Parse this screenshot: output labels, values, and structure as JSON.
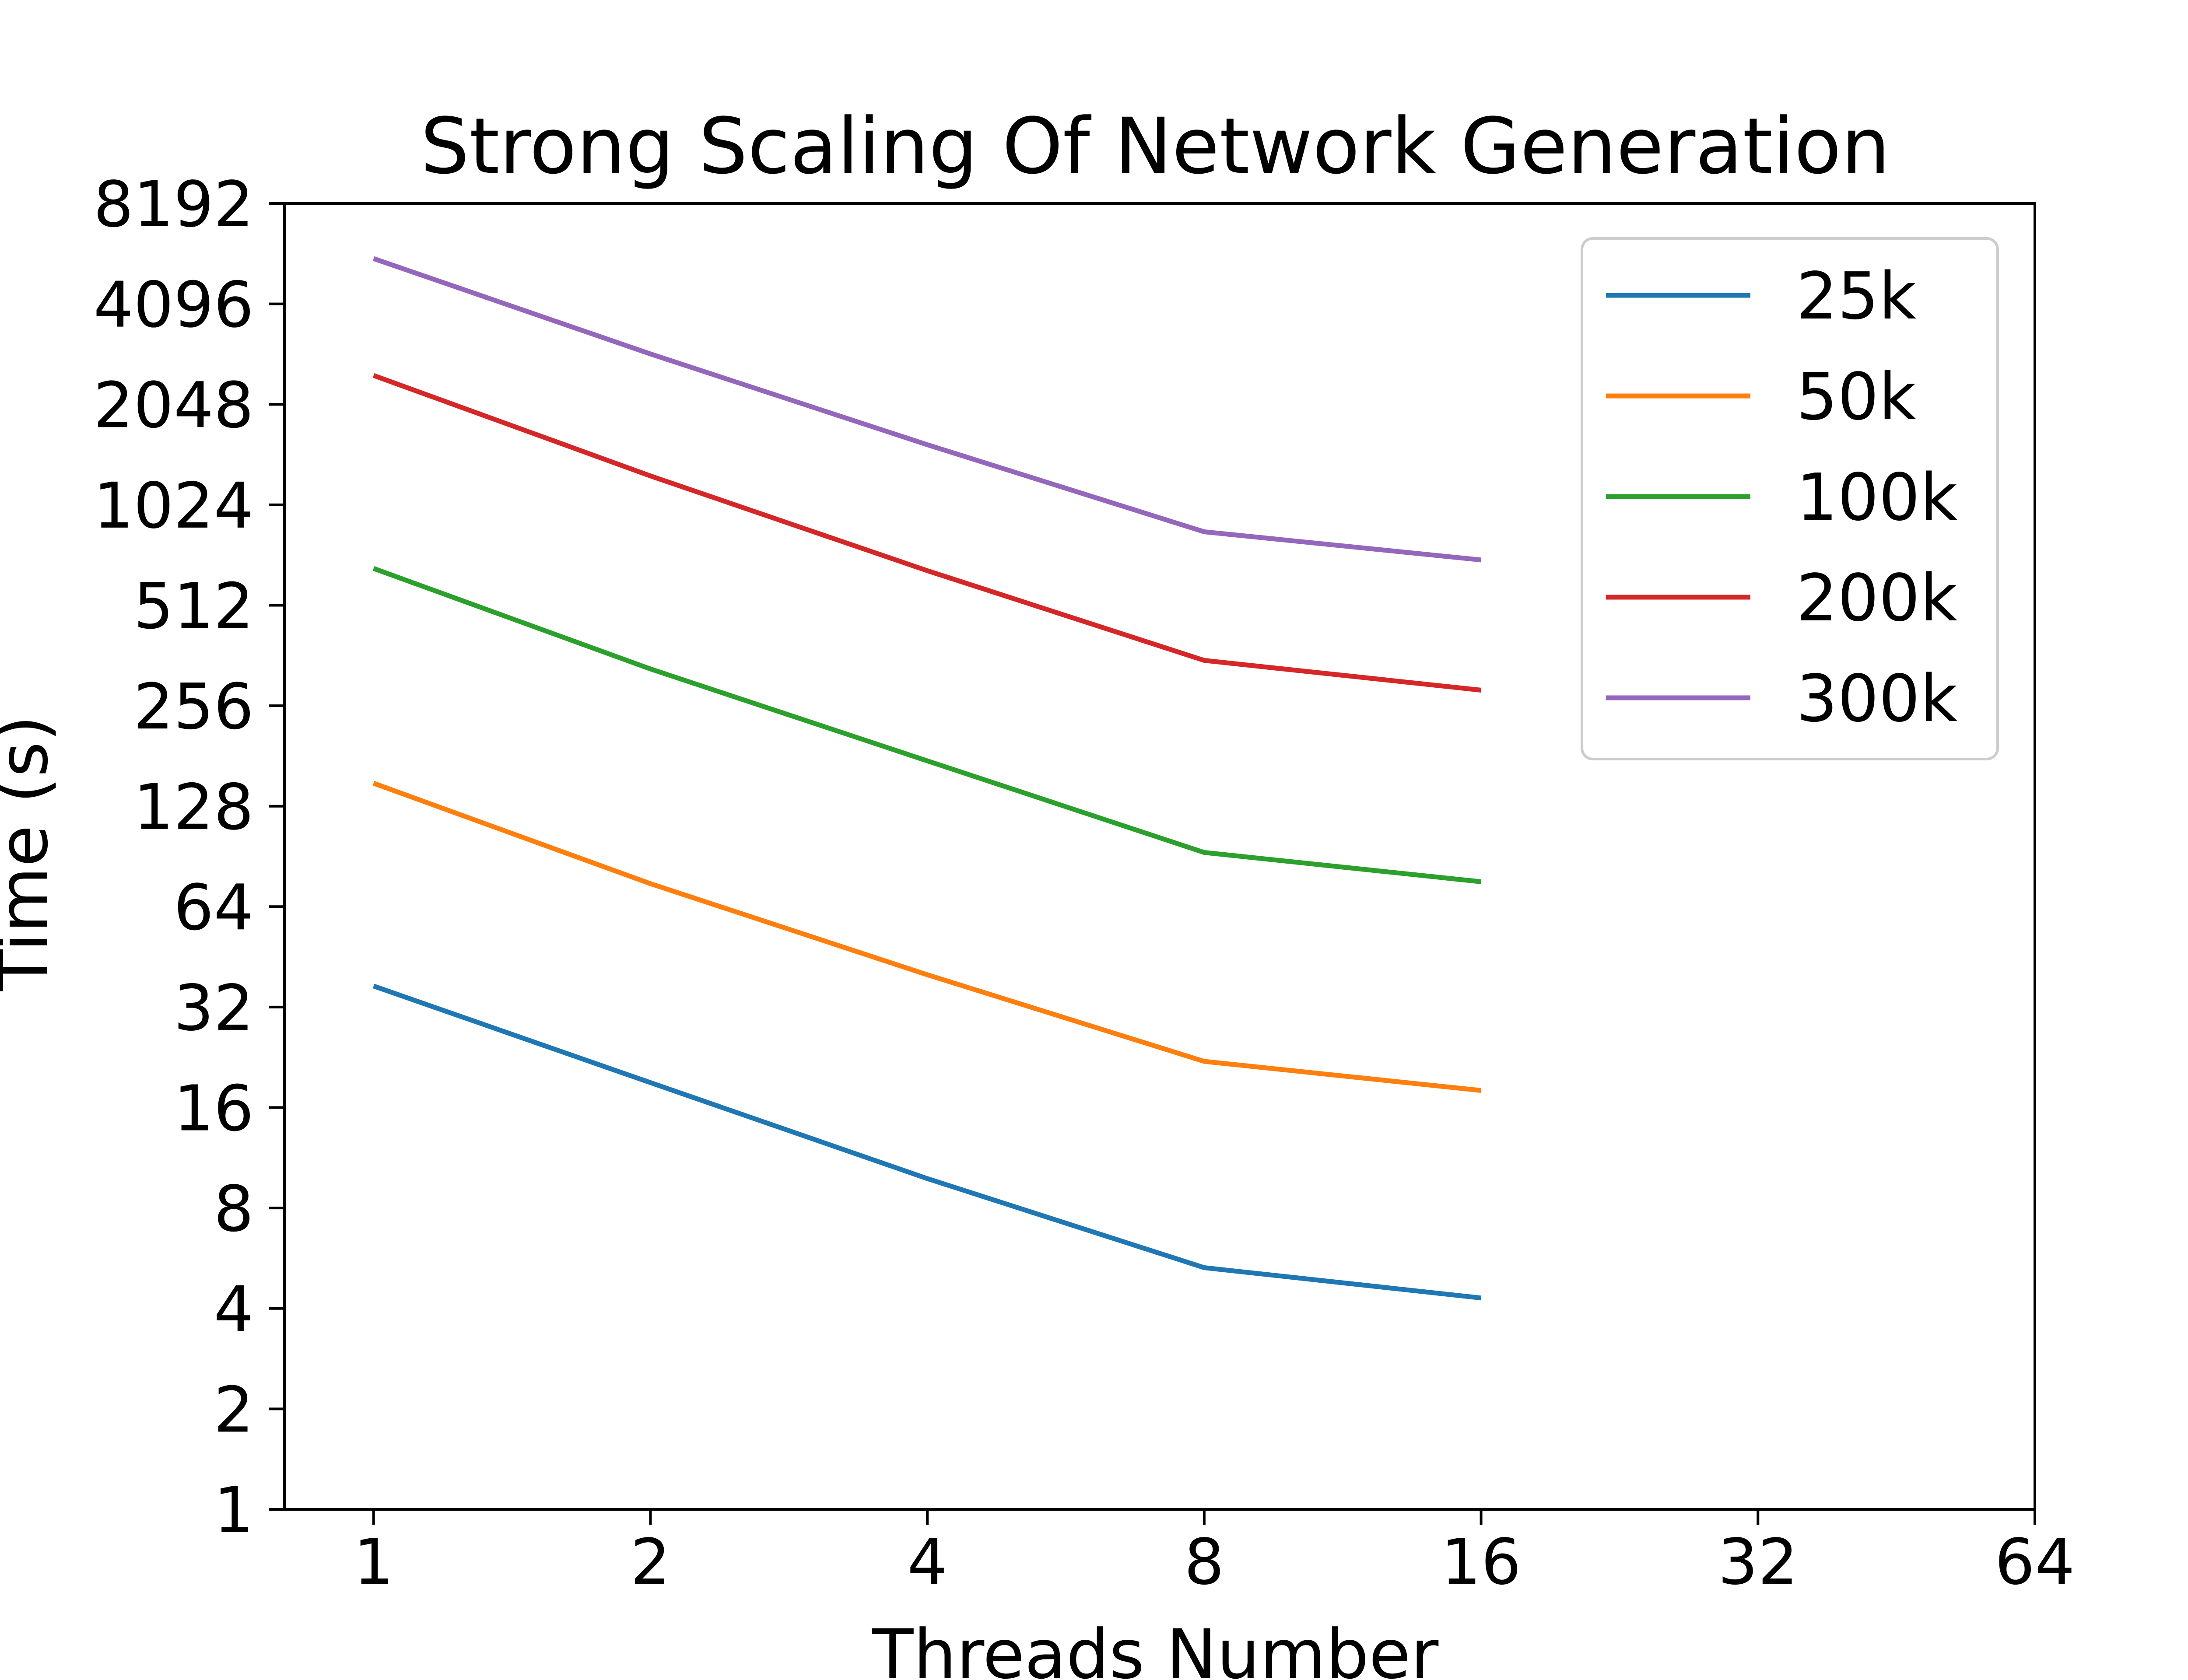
{
  "chart_data": {
    "type": "line",
    "title": "Strong Scaling Of Network Generation",
    "xlabel": "Threads Number",
    "ylabel": "Time (s)",
    "x_scale": "log2",
    "y_scale": "log2",
    "xlim": [
      0.8,
      64
    ],
    "ylim": [
      1,
      8192
    ],
    "x_ticks": [
      "1",
      "2",
      "4",
      "8",
      "16",
      "32",
      "64"
    ],
    "y_ticks": [
      "1",
      "2",
      "4",
      "8",
      "16",
      "32",
      "64",
      "128",
      "256",
      "512",
      "1024",
      "2048",
      "4096",
      "8192"
    ],
    "grid": false,
    "legend_position": "top-right",
    "x": [
      1,
      2,
      4,
      8,
      16
    ],
    "series": [
      {
        "name": "25k",
        "color": "#1f77b4",
        "values": [
          37,
          19,
          9.8,
          5.3,
          4.3
        ]
      },
      {
        "name": "50k",
        "color": "#ff7f0e",
        "values": [
          150,
          75,
          40,
          22,
          18
        ]
      },
      {
        "name": "100k",
        "color": "#2ca02c",
        "values": [
          660,
          330,
          175,
          93,
          76
        ]
      },
      {
        "name": "200k",
        "color": "#d62728",
        "values": [
          2500,
          1250,
          650,
          350,
          285
        ]
      },
      {
        "name": "300k",
        "color": "#9467bd",
        "values": [
          5600,
          2900,
          1550,
          850,
          700
        ]
      }
    ]
  }
}
